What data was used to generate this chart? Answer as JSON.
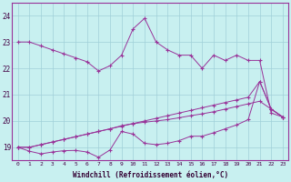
{
  "background_color": "#c8f0f0",
  "grid_color": "#a0d0d8",
  "line_color": "#993399",
  "xlabel": "Windchill (Refroidissement éolien,°C)",
  "hours": [
    0,
    1,
    2,
    3,
    4,
    5,
    6,
    7,
    8,
    9,
    10,
    11,
    12,
    13,
    14,
    15,
    16,
    17,
    18,
    19,
    20,
    21,
    22,
    23
  ],
  "series1": [
    23.0,
    23.0,
    22.85,
    22.7,
    22.55,
    22.4,
    22.25,
    21.9,
    22.1,
    22.5,
    23.5,
    23.9,
    23.0,
    22.7,
    22.5,
    22.5,
    22.0,
    22.5,
    22.3,
    22.5,
    22.3,
    22.3,
    20.3,
    20.15
  ],
  "series2": [
    19.0,
    19.0,
    19.1,
    19.2,
    19.3,
    19.4,
    19.5,
    19.6,
    19.7,
    19.8,
    19.9,
    20.0,
    20.1,
    20.2,
    20.3,
    20.4,
    20.5,
    20.6,
    20.7,
    20.8,
    20.9,
    21.5,
    20.45,
    20.15
  ],
  "series3": [
    19.0,
    19.0,
    19.1,
    19.2,
    19.3,
    19.4,
    19.5,
    19.6,
    19.7,
    19.82,
    19.9,
    19.95,
    20.0,
    20.05,
    20.12,
    20.2,
    20.27,
    20.35,
    20.45,
    20.55,
    20.65,
    20.75,
    20.45,
    20.15
  ],
  "series4": [
    19.0,
    18.85,
    18.75,
    18.82,
    18.87,
    18.88,
    18.82,
    18.62,
    18.9,
    19.6,
    19.5,
    19.15,
    19.1,
    19.15,
    19.25,
    19.42,
    19.42,
    19.55,
    19.7,
    19.85,
    20.05,
    21.5,
    20.45,
    20.15
  ],
  "ylim": [
    18.5,
    24.5
  ],
  "yticks": [
    19,
    20,
    21,
    22,
    23,
    24
  ],
  "xlim": [
    -0.5,
    23.5
  ],
  "figwidth": 3.2,
  "figheight": 2.0,
  "dpi": 100
}
